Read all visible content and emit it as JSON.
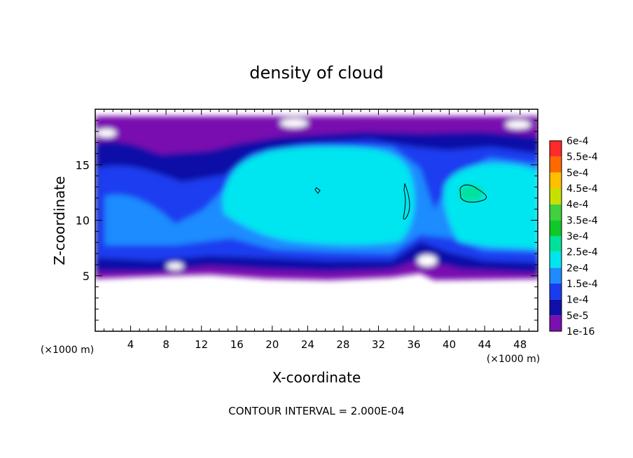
{
  "chart_data": {
    "type": "heatmap",
    "title": "density of cloud",
    "xlabel": "X-coordinate",
    "ylabel": "Z-coordinate",
    "x_unit": "(×1000 m)",
    "y_unit": "(×1000 m)",
    "xlim": [
      0,
      50
    ],
    "ylim": [
      0,
      20
    ],
    "x_ticks": [
      4,
      8,
      12,
      16,
      20,
      24,
      28,
      32,
      36,
      40,
      44,
      48
    ],
    "y_ticks": [
      5,
      10,
      15
    ],
    "footer": "CONTOUR INTERVAL = 2.000E-04",
    "colorbar": {
      "levels": [
        "1e-16",
        "5e-5",
        "1e-4",
        "1.5e-4",
        "2e-4",
        "2.5e-4",
        "3e-4",
        "3.5e-4",
        "4e-4",
        "4.5e-4",
        "5e-4",
        "5.5e-4",
        "6e-4"
      ],
      "colors": [
        "#7a10b0",
        "#1010a8",
        "#1a3cf0",
        "#1e8cff",
        "#00e6f0",
        "#00e29a",
        "#10c828",
        "#40d040",
        "#c8e000",
        "#ffc000",
        "#ff6a00",
        "#ff2a2a",
        "#ff8c8c"
      ]
    }
  }
}
